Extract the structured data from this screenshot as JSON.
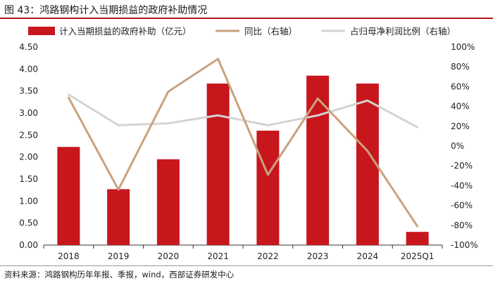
{
  "figure_title": "图 43：鸿路钢构计入当期损益的政府补助情况",
  "source": "资料来源：鸿路钢构历年年报、季报，wind，西部证券研发中心",
  "colors": {
    "bar": "#c8161d",
    "yoy": "#c9a27e",
    "ratio": "#d3d3d3",
    "rule": "#b4151c"
  },
  "chart_data": {
    "type": "bar",
    "categories": [
      "2018",
      "2019",
      "2020",
      "2021",
      "2022",
      "2023",
      "2024",
      "2025Q1"
    ],
    "series": [
      {
        "name": "计入当期损益的政府补助（亿元）",
        "type": "bar",
        "axis": "left",
        "values": [
          2.23,
          1.27,
          1.95,
          3.67,
          2.6,
          3.85,
          3.67,
          0.3
        ]
      },
      {
        "name": "同比（右轴）",
        "type": "line",
        "axis": "right",
        "values": [
          49,
          -44,
          55,
          88,
          -29,
          48,
          -5,
          -81
        ]
      },
      {
        "name": "占归母净利润比例（右轴）",
        "type": "line",
        "axis": "right",
        "values": [
          52,
          21,
          23,
          31,
          21,
          31,
          46,
          19
        ]
      }
    ],
    "y_left": {
      "min": 0,
      "max": 4.5,
      "ticks": [
        "0.00",
        "0.50",
        "1.00",
        "1.50",
        "2.00",
        "2.50",
        "3.00",
        "3.50",
        "4.00",
        "4.50"
      ]
    },
    "y_right": {
      "min": -100,
      "max": 100,
      "ticks": [
        "-100%",
        "-80%",
        "-60%",
        "-40%",
        "-20%",
        "0%",
        "20%",
        "40%",
        "60%",
        "80%",
        "100%"
      ]
    },
    "legend_position": "top",
    "grid": false
  }
}
